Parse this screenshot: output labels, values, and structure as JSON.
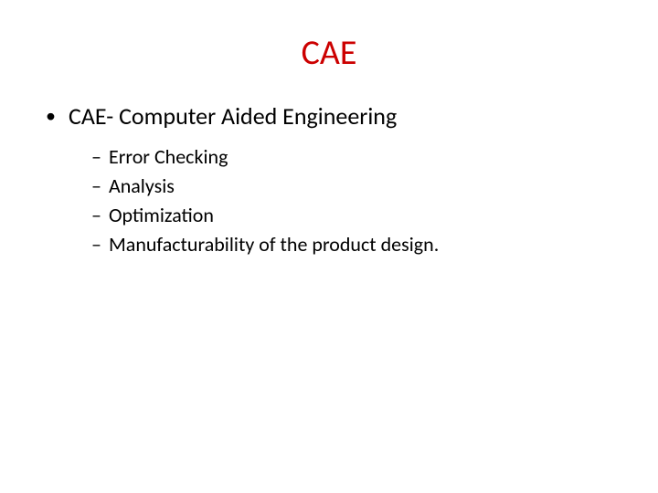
{
  "slide": {
    "title": "CAE",
    "title_color": "#cc0000",
    "title_fontsize": 38,
    "background_color": "#ffffff",
    "text_color": "#000000",
    "bullets": {
      "level1": [
        {
          "text": "CAE- Computer Aided Engineering",
          "marker": "•"
        }
      ],
      "level2": [
        {
          "text": "Error Checking",
          "marker": "–"
        },
        {
          "text": "Analysis",
          "marker": "–"
        },
        {
          "text": "Optimization",
          "marker": "–"
        },
        {
          "text": "Manufacturability of the product design.",
          "marker": "–"
        }
      ]
    },
    "level1_fontsize": 26,
    "level2_fontsize": 22
  }
}
